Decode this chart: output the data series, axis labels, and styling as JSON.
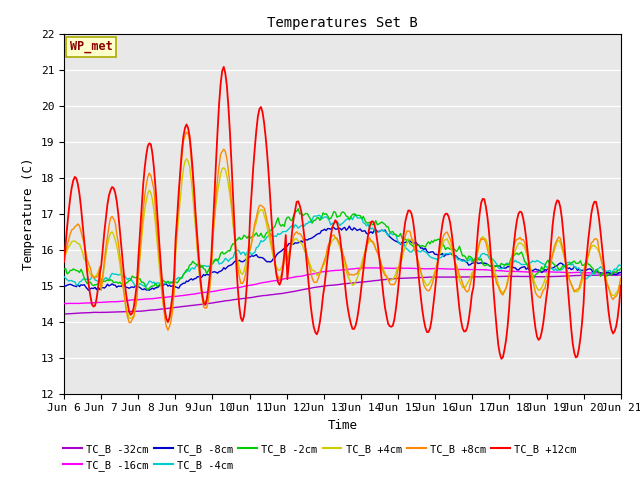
{
  "title": "Temperatures Set B",
  "xlabel": "Time",
  "ylabel": "Temperature (C)",
  "ylim": [
    12.0,
    22.0
  ],
  "yticks": [
    12.0,
    13.0,
    14.0,
    15.0,
    16.0,
    17.0,
    18.0,
    19.0,
    20.0,
    21.0,
    22.0
  ],
  "fig_bg": "#ffffff",
  "axes_bg": "#e8e8e8",
  "grid_color": "#ffffff",
  "annotation_text": "WP_met",
  "annotation_color": "#8b0000",
  "annotation_bg": "#ffffcc",
  "annotation_edge": "#aaaa00",
  "series_names": [
    "TC_B -32cm",
    "TC_B -16cm",
    "TC_B -8cm",
    "TC_B -4cm",
    "TC_B -2cm",
    "TC_B +4cm",
    "TC_B +8cm",
    "TC_B +12cm"
  ],
  "series_colors": [
    "#aa00cc",
    "#ff00ff",
    "#0000cc",
    "#00cccc",
    "#00cc00",
    "#cccc00",
    "#ff8800",
    "#ff0000"
  ],
  "series_lw": [
    1.0,
    1.0,
    1.0,
    1.0,
    1.0,
    1.0,
    1.0,
    1.3
  ],
  "xtick_labels": [
    "Jun 6",
    "Jun 7",
    "Jun 8",
    "Jun 9",
    "Jun 10",
    "Jun 11",
    "Jun 12",
    "Jun 13",
    "Jun 14",
    "Jun 15",
    "Jun 16",
    "Jun 17",
    "Jun 18",
    "Jun 19",
    "Jun 20",
    "Jun 21"
  ],
  "xtick_positions": [
    0,
    1,
    2,
    3,
    4,
    5,
    6,
    7,
    8,
    9,
    10,
    11,
    12,
    13,
    14,
    15
  ]
}
